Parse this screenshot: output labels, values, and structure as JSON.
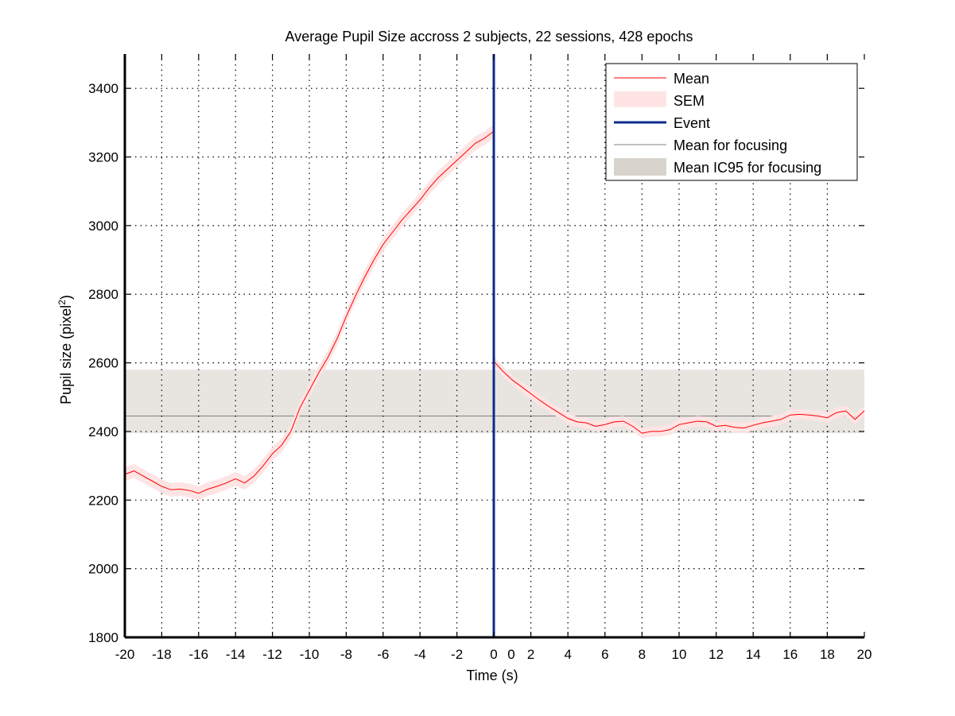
{
  "chart_data": {
    "type": "line",
    "title": "Average Pupil Size accross 2 subjects, 22 sessions, 428 epochs",
    "xlabel": "Time (s)",
    "ylabel": "Pupil size (pixel",
    "ylabel_superscript": "2",
    "ylabel_suffix": ")",
    "ylim": [
      1800,
      3500
    ],
    "yticks": [
      1800,
      2000,
      2200,
      2400,
      2600,
      2800,
      3000,
      3200,
      3400
    ],
    "grid": true,
    "legend_position": "top-right",
    "segments": [
      {
        "xlim": [
          -20,
          0
        ],
        "xticks": [
          -20,
          -18,
          -16,
          -14,
          -12,
          -10,
          -8,
          -6,
          -4,
          -2,
          0
        ],
        "mean": {
          "x": [
            -20,
            -19.5,
            -19,
            -18.5,
            -18,
            -17.5,
            -17,
            -16.5,
            -16,
            -15.5,
            -15,
            -14.5,
            -14,
            -13.5,
            -13,
            -12.5,
            -12,
            -11.5,
            -11,
            -10.5,
            -10,
            -9.5,
            -9,
            -8.5,
            -8,
            -7.5,
            -7,
            -6.5,
            -6,
            -5.5,
            -5,
            -4.5,
            -4,
            -3.5,
            -3,
            -2.5,
            -2,
            -1.5,
            -1,
            -0.5,
            0
          ],
          "y": [
            2275,
            2285,
            2270,
            2255,
            2240,
            2230,
            2232,
            2228,
            2220,
            2232,
            2240,
            2250,
            2262,
            2250,
            2270,
            2300,
            2335,
            2360,
            2400,
            2470,
            2520,
            2570,
            2615,
            2670,
            2735,
            2795,
            2850,
            2900,
            2945,
            2980,
            3015,
            3045,
            3075,
            3110,
            3140,
            3165,
            3190,
            3215,
            3240,
            3255,
            3275
          ]
        },
        "sem": 20,
        "event_x": 0
      },
      {
        "xlim": [
          0,
          20
        ],
        "xticks": [
          0,
          2,
          4,
          6,
          8,
          10,
          12,
          14,
          16,
          18,
          20
        ],
        "mean": {
          "x": [
            0,
            0.5,
            1,
            1.5,
            2,
            2.5,
            3,
            3.5,
            4,
            4.5,
            5,
            5.5,
            6,
            6.5,
            7,
            7.5,
            8,
            8.5,
            9,
            9.5,
            10,
            10.5,
            11,
            11.5,
            12,
            12.5,
            13,
            13.5,
            14,
            14.5,
            15,
            15.5,
            16,
            16.5,
            17,
            17.5,
            18,
            18.5,
            19,
            19.5,
            20
          ],
          "y": [
            2605,
            2575,
            2550,
            2530,
            2510,
            2490,
            2472,
            2455,
            2438,
            2428,
            2425,
            2415,
            2420,
            2428,
            2430,
            2415,
            2395,
            2400,
            2400,
            2405,
            2420,
            2425,
            2430,
            2428,
            2415,
            2418,
            2412,
            2410,
            2418,
            2425,
            2430,
            2435,
            2448,
            2450,
            2448,
            2445,
            2440,
            2455,
            2460,
            2435,
            2460
          ]
        },
        "sem": 15,
        "event_x": 0
      }
    ],
    "focusing_mean": 2445,
    "focusing_ic95": [
      2395,
      2580
    ],
    "legend": [
      "Mean",
      "SEM",
      "Event",
      "Mean for focusing",
      "Mean IC95 for focusing"
    ],
    "colors": {
      "mean": "#ff0000",
      "sem": "#ffe4e4",
      "event": "#0d2b8c",
      "focusing_mean": "#808080",
      "ic95": "#e8e5e1",
      "ic95_legend": "#d8d4cd",
      "grid": "#000000",
      "axis": "#000000"
    }
  }
}
